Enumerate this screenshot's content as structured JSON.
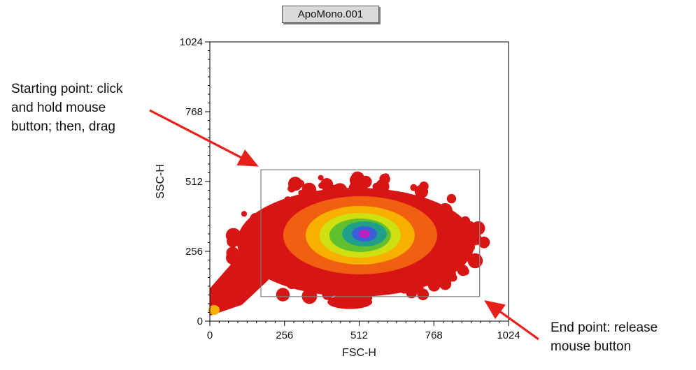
{
  "chart_data": {
    "type": "density",
    "title": "ApoMono.001",
    "xlabel": "FSC-H",
    "ylabel": "SSC-H",
    "xlim": [
      0,
      1024
    ],
    "ylim": [
      0,
      1024
    ],
    "xticks": [
      0,
      256,
      512,
      768,
      1024
    ],
    "yticks": [
      0,
      256,
      512,
      768,
      1024
    ],
    "xtick_labels": [
      "0",
      "256",
      "512",
      "768",
      "1024"
    ],
    "ytick_labels": [
      "0",
      "256",
      "512",
      "768",
      "1024"
    ],
    "density_peak": {
      "x": 525,
      "y": 320
    },
    "population_extent": {
      "x": [
        90,
        880
      ],
      "y": [
        20,
        540
      ]
    },
    "low_scatter_population": {
      "x": [
        0,
        130
      ],
      "y": [
        0,
        120
      ]
    },
    "gate": {
      "shape": "rectangle",
      "x": [
        175,
        925
      ],
      "y": [
        90,
        555
      ]
    },
    "color_scale": [
      "#d81515",
      "#f06010",
      "#f7b000",
      "#cfe010",
      "#60c030",
      "#20a08a",
      "#3a60d8",
      "#c020c0"
    ],
    "annotations": [
      "Starting point: click\nand hold mouse\nbutton; then, drag",
      "End point: release\nmouse button"
    ],
    "arrow_color": "#e8201a"
  }
}
